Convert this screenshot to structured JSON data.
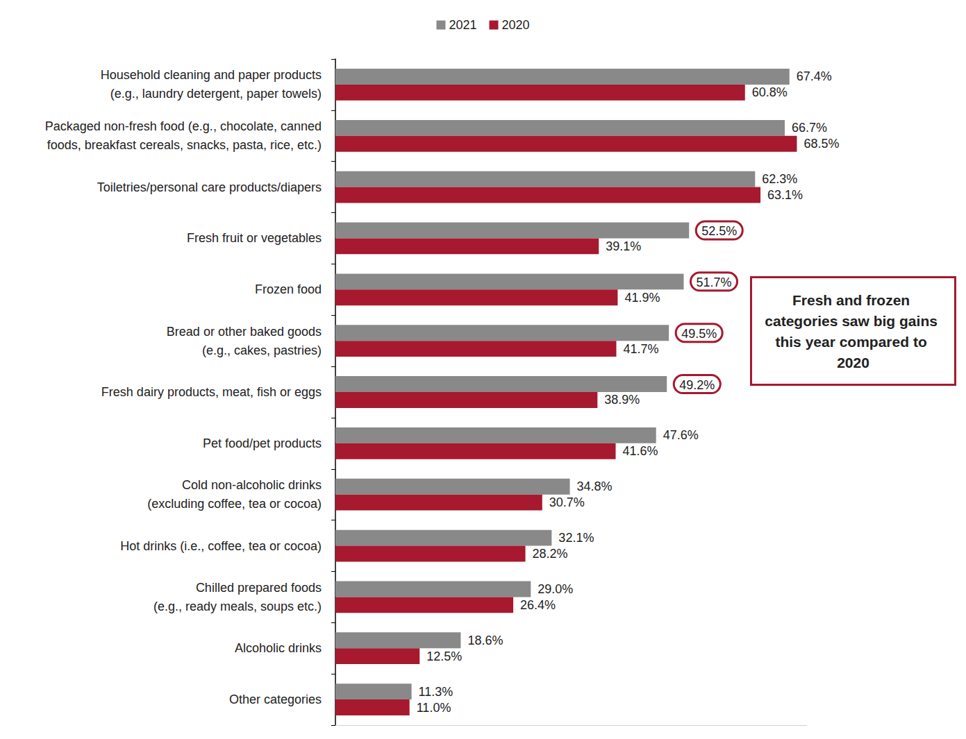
{
  "chart_data": {
    "type": "bar",
    "orientation": "horizontal",
    "data_labels": true,
    "tick_labels": "y",
    "grid": false,
    "legend": "top",
    "xlim": [
      0,
      70
    ],
    "xticks": [],
    "categories": [
      "Household cleaning and paper products\n(e.g., laundry detergent, paper towels)",
      "Packaged non-fresh food (e.g., chocolate, canned\nfoods, breakfast cereals, snacks, pasta, rice, etc.)",
      "Toiletries/personal care products/diapers",
      "Fresh fruit or vegetables",
      "Frozen food",
      "Bread or other baked goods\n(e.g., cakes, pastries)",
      "Fresh dairy products, meat, fish or eggs",
      "Pet food/pet products",
      "Cold non-alcoholic drinks\n(excluding coffee, tea or cocoa)",
      "Hot drinks (i.e., coffee, tea or cocoa)",
      "Chilled prepared foods\n(e.g., ready meals, soups etc.)",
      "Alcoholic drinks",
      "Other categories"
    ],
    "series": [
      {
        "name": "2021",
        "color": "#898989",
        "values": [
          67.4,
          66.7,
          62.3,
          52.5,
          51.7,
          49.5,
          49.2,
          47.6,
          34.8,
          32.1,
          29.0,
          18.6,
          11.3
        ],
        "value_labels": [
          "67.4%",
          "66.7%",
          "62.3%",
          "52.5%",
          "51.7%",
          "49.5%",
          "49.2%",
          "47.6%",
          "34.8%",
          "32.1%",
          "29.0%",
          "18.6%",
          "11.3%"
        ]
      },
      {
        "name": "2020",
        "color": "#A6192E",
        "values": [
          60.8,
          68.5,
          63.1,
          39.1,
          41.9,
          41.7,
          38.9,
          41.6,
          30.7,
          28.2,
          26.4,
          12.5,
          11.0
        ],
        "value_labels": [
          "60.8%",
          "68.5%",
          "63.1%",
          "39.1%",
          "41.9%",
          "41.7%",
          "38.9%",
          "41.6%",
          "30.7%",
          "28.2%",
          "26.4%",
          "12.5%",
          "11.0%"
        ]
      }
    ],
    "annotations": [
      {
        "text": "Fresh and frozen categories saw big gains this year compared to 2020",
        "series": "2021",
        "categories": [
          "Fresh fruit or vegetables",
          "Frozen food",
          "Bread or other baked goods\n(e.g., cakes, pastries)",
          "Fresh dairy products, meat, fish or eggs"
        ]
      }
    ]
  }
}
